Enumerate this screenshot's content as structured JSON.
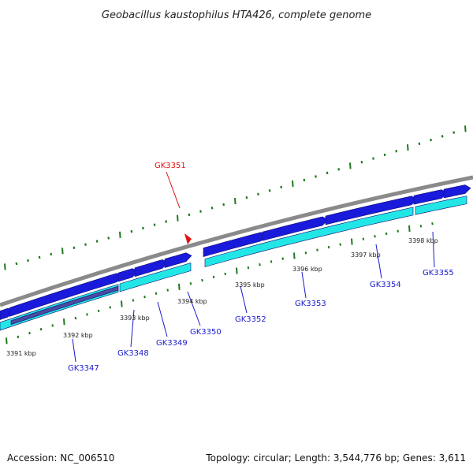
{
  "title": "Geobacillus kaustophilus HTA426, complete genome",
  "footer": {
    "accession": "Accession: NC_006510",
    "stats": "Topology: circular; Length: 3,544,776 bp; Genes: 3,611"
  },
  "colors": {
    "forward_gene": "#1a1adc",
    "reverse_gene": "#22e6e6",
    "highlight_gene": "#4a4aa0",
    "backbone": "#8a8a8a",
    "ticks": "#1f7a1f",
    "label_default": "#1a1acc",
    "label_highlight": "#dd1111",
    "marker": "#e01010"
  },
  "kbp_labels": [
    {
      "text": "3391 kbp"
    },
    {
      "text": "3392 kbp"
    },
    {
      "text": "3393 kbp"
    },
    {
      "text": "3394 kbp"
    },
    {
      "text": "3395 kbp"
    },
    {
      "text": "3396 kbp"
    },
    {
      "text": "3397 kbp"
    },
    {
      "text": "3398 kbp"
    }
  ],
  "gene_labels": [
    {
      "text": "GK3351",
      "highlight": true
    },
    {
      "text": "GK3347",
      "highlight": false
    },
    {
      "text": "GK3348",
      "highlight": false
    },
    {
      "text": "GK3349",
      "highlight": false
    },
    {
      "text": "GK3350",
      "highlight": false
    },
    {
      "text": "GK3352",
      "highlight": false
    },
    {
      "text": "GK3353",
      "highlight": false
    },
    {
      "text": "GK3354",
      "highlight": false
    },
    {
      "text": "GK3355",
      "highlight": false
    }
  ]
}
